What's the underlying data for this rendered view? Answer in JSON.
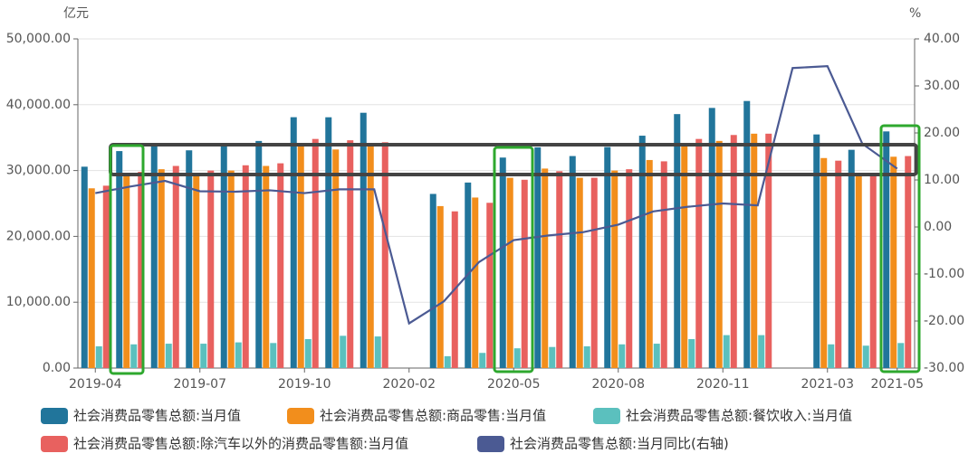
{
  "chart_data": {
    "type": "bar-line",
    "y_label": "亿元",
    "y2_label": "%",
    "categories": [
      "2019-04",
      null,
      null,
      "2019-07",
      null,
      null,
      "2019-10",
      null,
      null,
      "2020-02",
      null,
      null,
      "2020-05",
      null,
      null,
      "2020-08",
      null,
      null,
      "2020-11",
      null,
      null,
      "2021-03",
      null,
      "2021-05"
    ],
    "series": [
      {
        "name": "社会消费品零售总额:当月值",
        "color": "#21759b",
        "type": "bar",
        "values": [
          30586,
          32956,
          33878,
          33073,
          33896,
          34495,
          38104,
          38094,
          38777,
          null,
          26450,
          28178,
          31973,
          33526,
          32203,
          33571,
          35295,
          38576,
          39514,
          40566,
          null,
          35484,
          33153,
          35945
        ]
      },
      {
        "name": "社会消费品零售总额:商品零售:当月值",
        "color": "#f28e1c",
        "type": "bar",
        "values": [
          27300,
          29400,
          30200,
          29600,
          30000,
          30700,
          33700,
          33200,
          33800,
          null,
          24600,
          25900,
          28900,
          30300,
          28900,
          30000,
          31600,
          33700,
          34500,
          35600,
          null,
          31900,
          29200,
          32100
        ]
      },
      {
        "name": "社会消费品零售总额:餐饮收入:当月值",
        "color": "#5bc0be",
        "type": "bar",
        "values": [
          3300,
          3600,
          3700,
          3700,
          3900,
          3800,
          4400,
          4900,
          4800,
          null,
          1800,
          2300,
          3000,
          3200,
          3300,
          3600,
          3700,
          4400,
          5000,
          5000,
          null,
          3600,
          3400,
          3800
        ]
      },
      {
        "name": "社会消费品零售总额:除汽车以外的消费品零售额:当月值",
        "color": "#e8615f",
        "type": "bar",
        "values": [
          27700,
          29800,
          30700,
          30000,
          30800,
          31100,
          34800,
          34600,
          34300,
          null,
          23800,
          25100,
          28600,
          29900,
          28900,
          30200,
          31400,
          34800,
          35400,
          35600,
          null,
          31500,
          29200,
          32200
        ]
      },
      {
        "name": "社会消费品零售总额:当月同比(右轴)",
        "color": "#4b5a93",
        "type": "line",
        "axis": "y2",
        "values": [
          7.2,
          8.6,
          9.8,
          7.6,
          7.5,
          7.8,
          7.2,
          8.0,
          8.0,
          -20.5,
          -15.8,
          -7.5,
          -2.8,
          -1.8,
          -1.1,
          0.5,
          3.3,
          4.3,
          5.0,
          4.6,
          33.8,
          34.2,
          17.7,
          12.4
        ]
      }
    ],
    "ylim": [
      0,
      50000
    ],
    "yticks": [
      {
        "value": 0,
        "label": "0.00"
      },
      {
        "value": 10000,
        "label": "10,000.00"
      },
      {
        "value": 20000,
        "label": "20,000.00"
      },
      {
        "value": 30000,
        "label": "30,000.00"
      },
      {
        "value": 40000,
        "label": "40,000.00"
      },
      {
        "value": 50000,
        "label": "50,000.00"
      }
    ],
    "y2lim": [
      -30,
      40
    ],
    "y2ticks": [
      {
        "value": -30,
        "label": "-30.00"
      },
      {
        "value": -20,
        "label": "-20.00"
      },
      {
        "value": -10,
        "label": "-10.00"
      },
      {
        "value": 0,
        "label": "0.00"
      },
      {
        "value": 10,
        "label": "10.00"
      },
      {
        "value": 20,
        "label": "20.00"
      },
      {
        "value": 30,
        "label": "30.00"
      },
      {
        "value": 40,
        "label": "40.00"
      }
    ],
    "grid": true
  }
}
